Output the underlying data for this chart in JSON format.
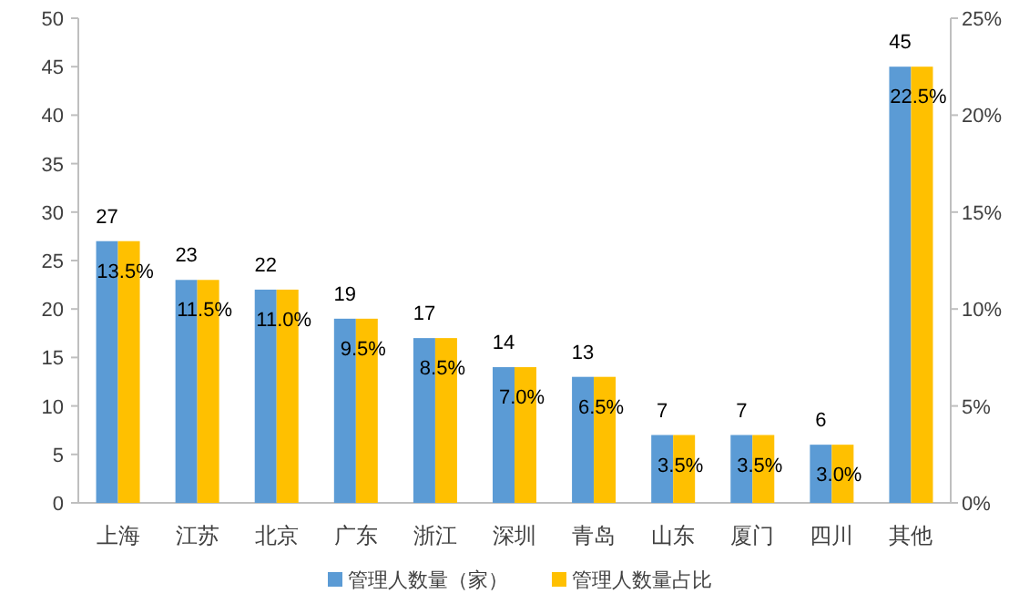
{
  "chart_data": {
    "type": "bar",
    "categories": [
      "上海",
      "江苏",
      "北京",
      "广东",
      "浙江",
      "深圳",
      "青岛",
      "山东",
      "厦门",
      "四川",
      "其他"
    ],
    "series": [
      {
        "name": "管理人数量（家）",
        "color": "#5b9bd5",
        "values": [
          27,
          23,
          22,
          19,
          17,
          14,
          13,
          7,
          7,
          6,
          45
        ],
        "value_labels": [
          "27",
          "23",
          "22",
          "19",
          "17",
          "14",
          "13",
          "7",
          "7",
          "6",
          "45"
        ]
      },
      {
        "name": "管理人数量占比",
        "color": "#ffc000",
        "axis": "y2",
        "values": [
          13.5,
          11.5,
          11.0,
          9.5,
          8.5,
          7.0,
          6.5,
          3.5,
          3.5,
          3.0,
          22.5
        ],
        "value_labels": [
          "13.5%",
          "11.5%",
          "11.0%",
          "9.5%",
          "8.5%",
          "7.0%",
          "6.5%",
          "3.5%",
          "3.5%",
          "3.0%",
          "22.5%"
        ]
      }
    ],
    "ylim": [
      0,
      50
    ],
    "yticks": [
      0,
      5,
      10,
      15,
      20,
      25,
      30,
      35,
      40,
      45,
      50
    ],
    "y2lim": [
      0,
      25
    ],
    "y2ticks": [
      {
        "value": 0,
        "label": "0%"
      },
      {
        "value": 5,
        "label": "5%"
      },
      {
        "value": 10,
        "label": "10%"
      },
      {
        "value": 15,
        "label": "15%"
      },
      {
        "value": 20,
        "label": "20%"
      },
      {
        "value": 25,
        "label": "25%"
      }
    ],
    "grid": false,
    "legend": "bottom"
  }
}
